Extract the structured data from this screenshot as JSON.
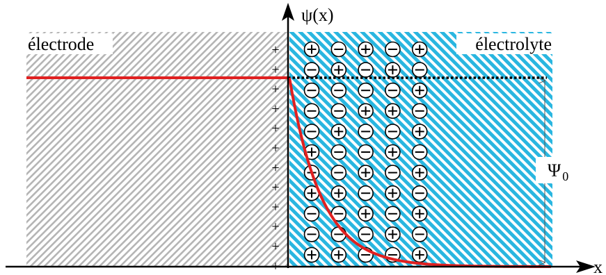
{
  "labels": {
    "y_axis": "ψ(x)",
    "x_axis": "x",
    "electrode": "électrode",
    "electrolyte": "électrolyte",
    "psi0_symbol": "Ψ",
    "psi0_subscript": "0"
  },
  "surface_charge_sign": "+",
  "electrode_charges": [
    "+",
    "+",
    "+",
    "+",
    "+",
    "+",
    "+",
    "+",
    "+",
    "+",
    "+",
    "+"
  ],
  "ion_grid": [
    [
      "+",
      "-",
      "+",
      "-",
      "+"
    ],
    [
      "-",
      "+",
      "-",
      "+",
      "-"
    ],
    [
      "-",
      "-",
      "-",
      "-",
      "+"
    ],
    [
      "-",
      "-",
      "+",
      "+",
      "-"
    ],
    [
      "-",
      "+",
      "-",
      "-",
      "+"
    ],
    [
      "+",
      "-",
      "-",
      "+",
      "-"
    ],
    [
      "-",
      "-",
      "+",
      "-",
      "+"
    ],
    [
      "+",
      "+",
      "-",
      "+",
      "-"
    ],
    [
      "-",
      "-",
      "+",
      "-",
      "+"
    ],
    [
      "-",
      "-",
      "-",
      "+",
      "-"
    ],
    [
      "+",
      "+",
      "-",
      "-",
      "+"
    ]
  ],
  "colors": {
    "electrode_hatch": "#b4b4b4",
    "electrolyte_hatch": "#29b6e0",
    "potential_curve": "#e02020",
    "psi_label": "#e02020",
    "axes": "#000000"
  }
}
